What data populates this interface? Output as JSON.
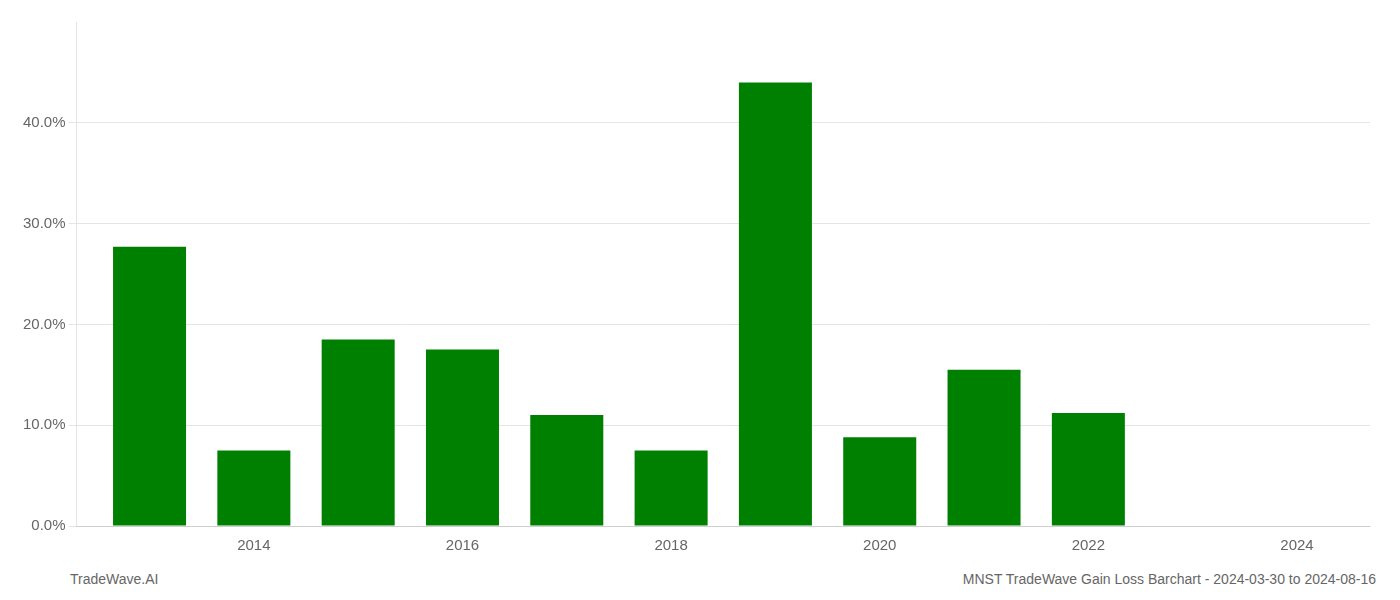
{
  "chart_data": {
    "type": "bar",
    "x": [
      2013,
      2014,
      2015,
      2016,
      2017,
      2018,
      2019,
      2020,
      2021,
      2022,
      2023
    ],
    "values": [
      0.277,
      0.075,
      0.185,
      0.175,
      0.11,
      0.075,
      0.44,
      0.088,
      0.155,
      0.112,
      0.0
    ],
    "color": "#008000",
    "xlim": [
      2012.3,
      2024.7
    ],
    "xticks": [
      2014,
      2016,
      2018,
      2020,
      2022,
      2024
    ],
    "ylim": [
      0,
      0.5
    ],
    "yticks": [
      {
        "value": 0.0,
        "label": "0.0%"
      },
      {
        "value": 0.1,
        "label": "10.0%"
      },
      {
        "value": 0.2,
        "label": "20.0%"
      },
      {
        "value": 0.3,
        "label": "30.0%"
      },
      {
        "value": 0.4,
        "label": "40.0%"
      }
    ],
    "grid": "y",
    "annotations": [
      "TradeWave.AI",
      "MNST TradeWave Gain Loss Barchart - 2024-03-30 to 2024-08-16"
    ]
  }
}
